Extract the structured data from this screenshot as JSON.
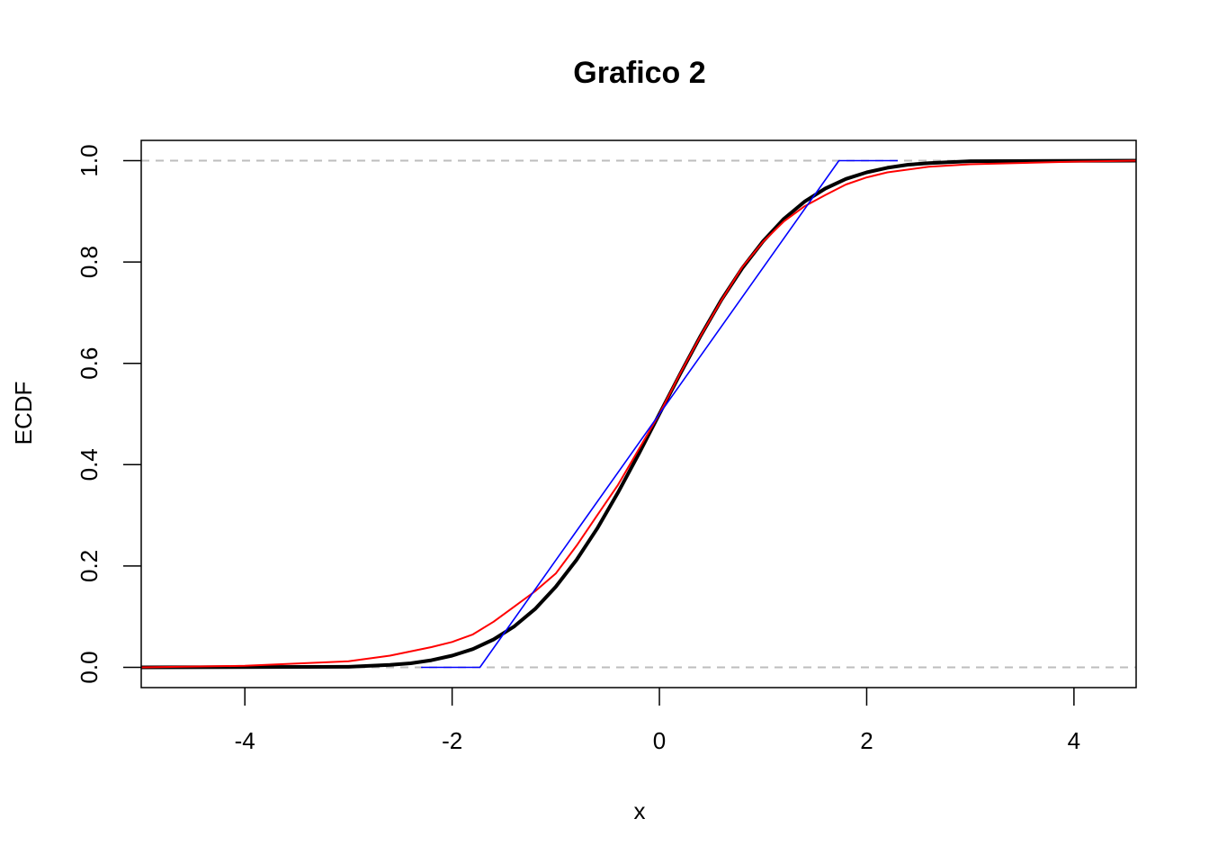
{
  "chart_data": {
    "type": "line",
    "title": "Grafico 2",
    "xlabel": "x",
    "ylabel": "ECDF",
    "xlim": [
      -5.0,
      4.6
    ],
    "ylim": [
      -0.04,
      1.04
    ],
    "x_ticks": [
      -4,
      -2,
      0,
      2,
      4
    ],
    "x_tick_labels": [
      "-4",
      "-2",
      "0",
      "2",
      "4"
    ],
    "y_ticks": [
      0.0,
      0.2,
      0.4,
      0.6,
      0.8,
      1.0
    ],
    "y_tick_labels": [
      "0.0",
      "0.2",
      "0.4",
      "0.6",
      "0.8",
      "1.0"
    ],
    "reference_lines": [
      0,
      1
    ],
    "grid": false,
    "legend": "none",
    "series": [
      {
        "color": "#000000",
        "x": [
          -5.0,
          -3.0,
          -2.6,
          -2.4,
          -2.2,
          -2.0,
          -1.8,
          -1.6,
          -1.4,
          -1.2,
          -1.0,
          -0.8,
          -0.6,
          -0.4,
          -0.2,
          0.0,
          0.2,
          0.4,
          0.6,
          0.8,
          1.0,
          1.2,
          1.4,
          1.6,
          1.8,
          2.0,
          2.2,
          2.4,
          2.6,
          3.0,
          4.6
        ],
        "y": [
          0.0,
          0.001,
          0.005,
          0.008,
          0.014,
          0.023,
          0.036,
          0.055,
          0.081,
          0.115,
          0.159,
          0.212,
          0.274,
          0.345,
          0.421,
          0.5,
          0.579,
          0.655,
          0.726,
          0.788,
          0.841,
          0.885,
          0.919,
          0.945,
          0.964,
          0.977,
          0.986,
          0.992,
          0.995,
          0.999,
          1.0
        ]
      },
      {
        "color": "#ff0000",
        "x": [
          -5.0,
          -4.0,
          -3.0,
          -2.6,
          -2.2,
          -2.0,
          -1.8,
          -1.6,
          -1.4,
          -1.2,
          -1.0,
          -0.8,
          -0.6,
          -0.4,
          -0.2,
          0.0,
          0.2,
          0.4,
          0.6,
          0.8,
          1.0,
          1.2,
          1.4,
          1.6,
          1.8,
          2.0,
          2.2,
          2.6,
          3.0,
          4.0,
          4.6
        ],
        "y": [
          0.0,
          0.003,
          0.012,
          0.023,
          0.04,
          0.05,
          0.065,
          0.09,
          0.12,
          0.15,
          0.185,
          0.24,
          0.3,
          0.36,
          0.43,
          0.5,
          0.58,
          0.655,
          0.725,
          0.79,
          0.84,
          0.88,
          0.91,
          0.932,
          0.953,
          0.967,
          0.977,
          0.988,
          0.993,
          0.998,
          1.0
        ]
      },
      {
        "color": "#0000ff",
        "x": [
          -2.3,
          -1.732,
          1.732,
          2.3
        ],
        "y": [
          0.0,
          0.0,
          1.0,
          1.0
        ]
      }
    ]
  }
}
